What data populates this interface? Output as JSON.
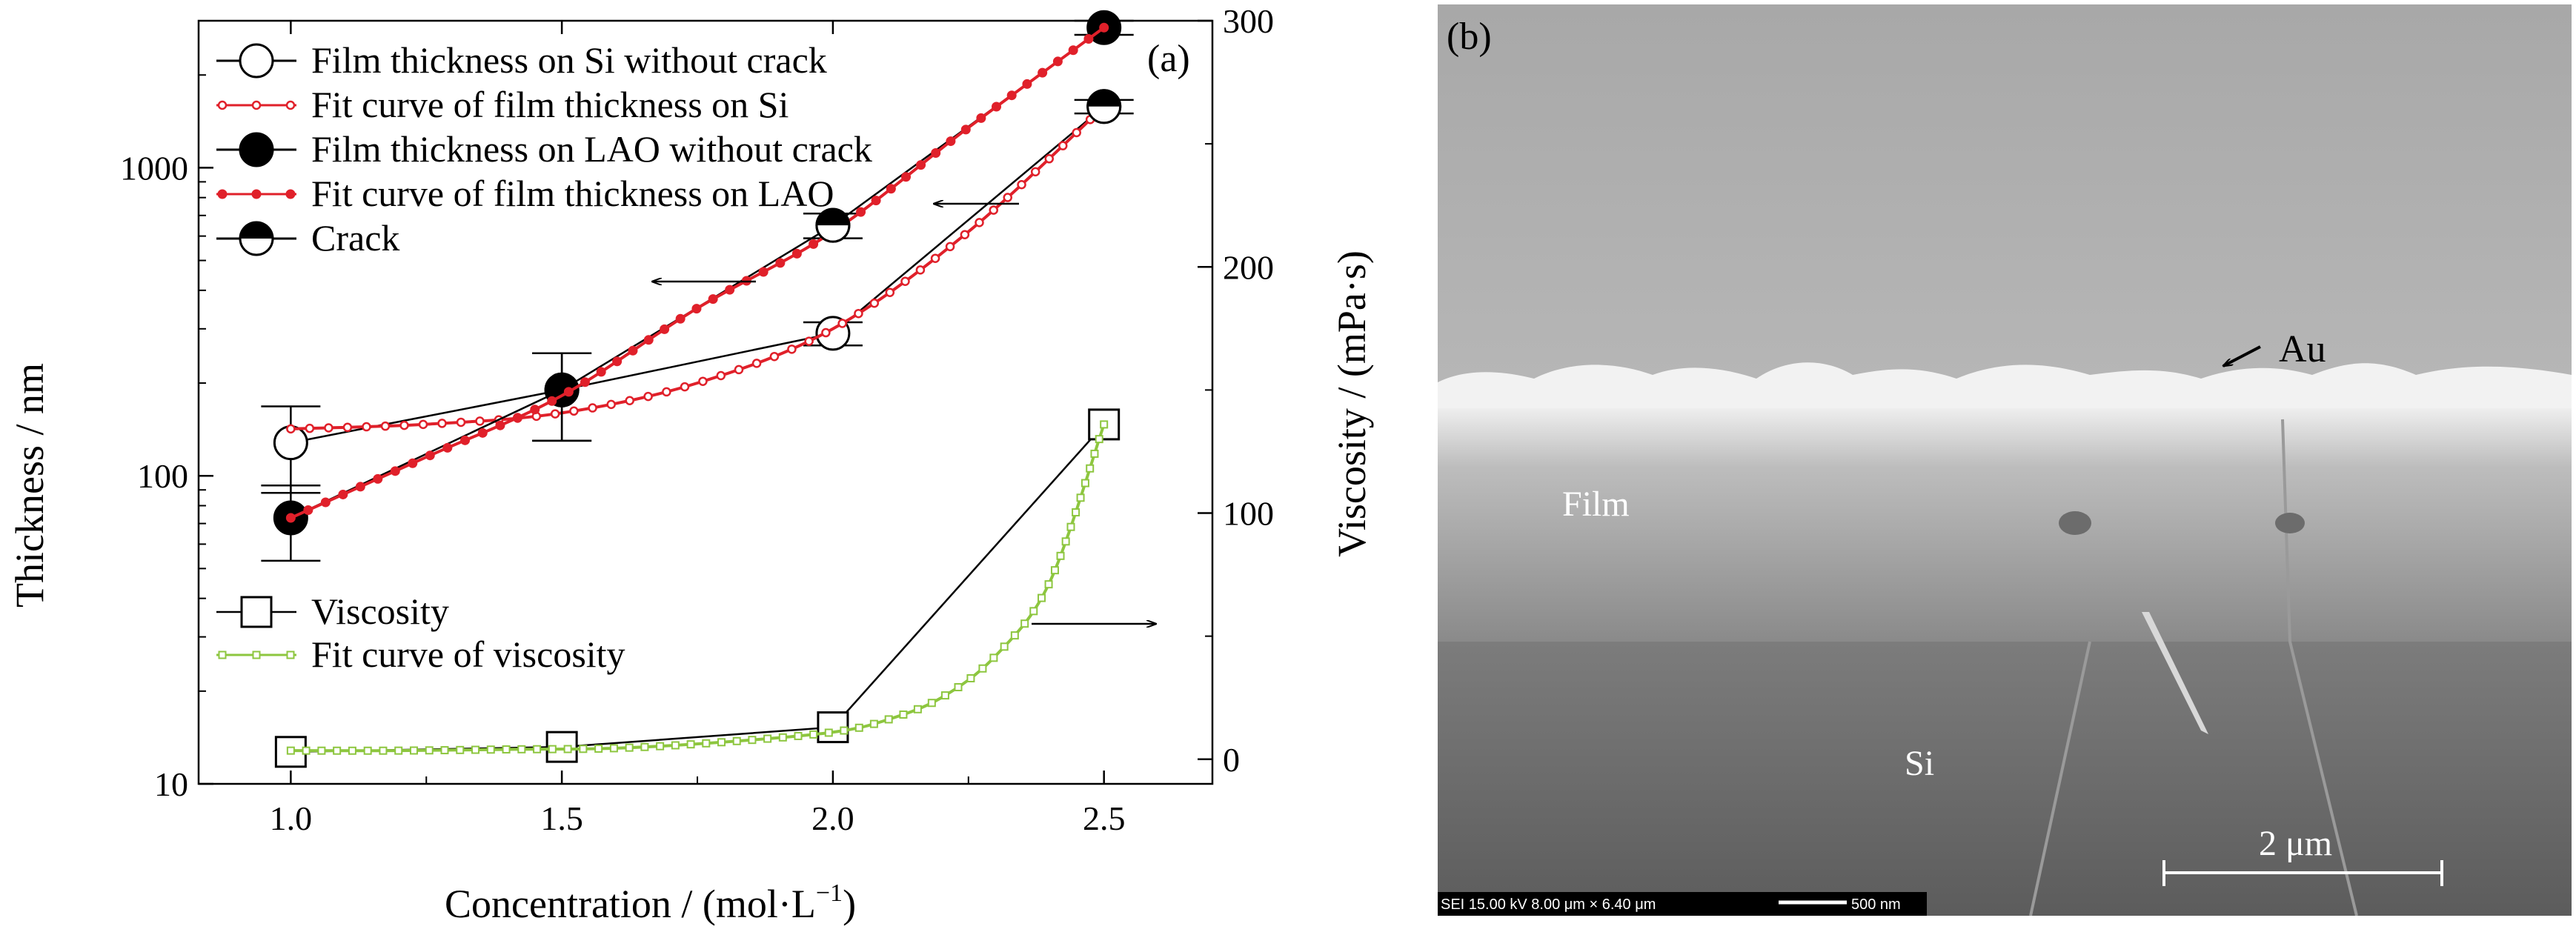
{
  "chart_data": {
    "type": "line",
    "panel_label": "(a)",
    "xlabel": "Concentration / (mol·L",
    "xlabel_superscript": "−1",
    "xlabel_suffix": ")",
    "ylabel": "Thickness / nm",
    "y2label": "Viscosity / (mPa·s)",
    "xlim": [
      0.83,
      2.7
    ],
    "ylim": [
      10,
      3000
    ],
    "yscale": "log",
    "y2lim": [
      -10,
      300
    ],
    "xticks": [
      "1.0",
      "1.5",
      "2.0",
      "2.5"
    ],
    "yticks": [
      "10",
      "100",
      "1000"
    ],
    "y2ticks": [
      "0",
      "100",
      "200",
      "300"
    ],
    "grid": false,
    "legend_placement": "top-left",
    "series": [
      {
        "name": "Film thickness on Si without crack",
        "axis": "left",
        "marker": "open-circle",
        "color": "#000000",
        "x": [
          1.0,
          1.5,
          2.0,
          2.5
        ],
        "y": [
          128,
          190,
          290,
          1580
        ],
        "yerr": [
          40,
          60,
          25,
          80
        ]
      },
      {
        "name": "Fit curve of film thickness on Si",
        "axis": "left",
        "marker": "small-open-circle",
        "color": "#e0202a",
        "x": [
          1.0,
          1.25,
          1.5,
          1.75,
          2.0,
          2.25,
          2.5
        ],
        "y": [
          142,
          147,
          160,
          200,
          300,
          620,
          1580
        ]
      },
      {
        "name": "Film thickness on LAO without crack",
        "axis": "left",
        "marker": "filled-circle",
        "color": "#000000",
        "x": [
          1.0,
          1.5,
          2.0,
          2.5
        ],
        "y": [
          73,
          190,
          650,
          2850
        ],
        "yerr": [
          20,
          60,
          60,
          150
        ]
      },
      {
        "name": "Fit curve of film thickness on LAO",
        "axis": "left",
        "marker": "small-filled-circle",
        "color": "#e0202a",
        "x": [
          1.0,
          1.25,
          1.5,
          1.75,
          2.0,
          2.25,
          2.5
        ],
        "y": [
          73,
          115,
          182,
          350,
          620,
          1350,
          2850
        ]
      },
      {
        "name": "Crack",
        "axis": "left",
        "marker": "half-circle",
        "color": "#000000",
        "x": [
          2.0,
          2.5
        ],
        "y": [
          650,
          1580
        ]
      },
      {
        "name": "Viscosity",
        "axis": "right",
        "marker": "open-square",
        "color": "#000000",
        "x": [
          1.0,
          1.5,
          2.0,
          2.5
        ],
        "y": [
          3,
          5,
          13,
          136
        ]
      },
      {
        "name": "Fit curve of viscosity",
        "axis": "right",
        "marker": "small-open-square",
        "color": "#8dc63f",
        "x": [
          1.0,
          1.2,
          1.4,
          1.6,
          1.8,
          2.0,
          2.1,
          2.2,
          2.3,
          2.4,
          2.5
        ],
        "y": [
          3.5,
          3.5,
          4,
          4.5,
          7,
          11,
          16,
          25,
          42,
          72,
          136
        ]
      }
    ]
  },
  "sem_image": {
    "panel_label": "(b)",
    "labels": {
      "au": "Au",
      "film": "Film",
      "si": "Si"
    },
    "scale_bar": "2 μm",
    "footer_info": "SEI 15.00 kV 8.00 μm × 6.40 μm",
    "footer_scale": "500 nm"
  }
}
